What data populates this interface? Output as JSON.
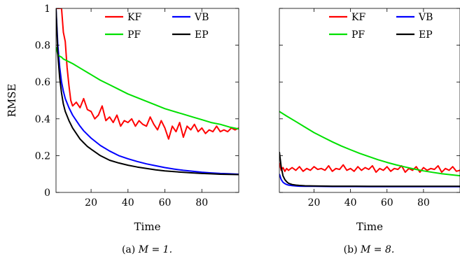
{
  "figure": {
    "shared_xlabel": "Time",
    "shared_ylabel": "RMSE"
  },
  "chart_data": [
    {
      "type": "line",
      "caption_label": "(a)",
      "caption_math": "M = 1.",
      "xlabel": "Time",
      "ylabel": "RMSE",
      "xlim": [
        1,
        100
      ],
      "ylim": [
        0,
        1
      ],
      "xticks": [
        20,
        40,
        60,
        80
      ],
      "yticks": [
        0,
        0.2,
        0.4,
        0.6,
        0.8,
        1
      ],
      "legend_placement": "top-right",
      "series": [
        {
          "name": "KF",
          "color": "#ff0000",
          "x": [
            1,
            2,
            3,
            4,
            5,
            6,
            7,
            8,
            9,
            10,
            12,
            14,
            16,
            18,
            20,
            22,
            24,
            26,
            28,
            30,
            32,
            34,
            36,
            38,
            40,
            42,
            44,
            46,
            48,
            50,
            52,
            54,
            56,
            58,
            60,
            62,
            64,
            66,
            68,
            70,
            72,
            74,
            76,
            78,
            80,
            82,
            84,
            86,
            88,
            90,
            92,
            94,
            96,
            98,
            100
          ],
          "values": [
            1.0,
            1.0,
            1.0,
            1.0,
            0.87,
            0.82,
            0.68,
            0.58,
            0.5,
            0.47,
            0.49,
            0.46,
            0.51,
            0.45,
            0.44,
            0.4,
            0.42,
            0.47,
            0.39,
            0.41,
            0.38,
            0.42,
            0.36,
            0.39,
            0.38,
            0.4,
            0.36,
            0.39,
            0.37,
            0.36,
            0.41,
            0.37,
            0.34,
            0.39,
            0.35,
            0.29,
            0.36,
            0.33,
            0.38,
            0.3,
            0.36,
            0.34,
            0.37,
            0.33,
            0.35,
            0.32,
            0.34,
            0.33,
            0.36,
            0.33,
            0.34,
            0.33,
            0.35,
            0.34,
            0.35
          ]
        },
        {
          "name": "VB",
          "color": "#0000ff",
          "x": [
            1,
            2,
            3,
            4,
            5,
            6,
            8,
            10,
            12,
            14,
            16,
            18,
            20,
            25,
            30,
            35,
            40,
            45,
            50,
            55,
            60,
            65,
            70,
            75,
            80,
            85,
            90,
            95,
            100
          ],
          "values": [
            1.0,
            0.8,
            0.68,
            0.6,
            0.55,
            0.51,
            0.46,
            0.42,
            0.39,
            0.36,
            0.335,
            0.315,
            0.295,
            0.255,
            0.225,
            0.2,
            0.183,
            0.168,
            0.155,
            0.145,
            0.135,
            0.127,
            0.12,
            0.115,
            0.11,
            0.106,
            0.103,
            0.101,
            0.099
          ]
        },
        {
          "name": "PF",
          "color": "#00e000",
          "x": [
            1,
            2,
            3,
            4,
            5,
            6,
            8,
            10,
            15,
            20,
            25,
            30,
            35,
            40,
            45,
            50,
            55,
            60,
            65,
            70,
            75,
            80,
            85,
            90,
            95,
            100
          ],
          "values": [
            0.79,
            0.75,
            0.74,
            0.735,
            0.725,
            0.72,
            0.71,
            0.7,
            0.67,
            0.64,
            0.61,
            0.585,
            0.56,
            0.535,
            0.515,
            0.495,
            0.475,
            0.455,
            0.44,
            0.425,
            0.41,
            0.395,
            0.38,
            0.37,
            0.355,
            0.345
          ]
        },
        {
          "name": "EP",
          "color": "#000000",
          "x": [
            1,
            2,
            3,
            4,
            5,
            6,
            8,
            10,
            12,
            14,
            16,
            18,
            20,
            25,
            30,
            35,
            40,
            45,
            50,
            55,
            60,
            65,
            70,
            75,
            80,
            85,
            90,
            95,
            100
          ],
          "values": [
            1.0,
            0.75,
            0.62,
            0.54,
            0.48,
            0.44,
            0.39,
            0.35,
            0.32,
            0.29,
            0.27,
            0.25,
            0.235,
            0.2,
            0.175,
            0.16,
            0.148,
            0.138,
            0.13,
            0.123,
            0.117,
            0.113,
            0.109,
            0.106,
            0.103,
            0.101,
            0.099,
            0.098,
            0.097
          ]
        }
      ]
    },
    {
      "type": "line",
      "caption_label": "(b)",
      "caption_math": "M = 8.",
      "xlabel": "Time",
      "ylabel": "",
      "xlim": [
        1,
        100
      ],
      "ylim": [
        0,
        1
      ],
      "xticks": [
        20,
        40,
        60,
        80
      ],
      "yticks": [
        0,
        0.2,
        0.4,
        0.6,
        0.8,
        1
      ],
      "legend_placement": "top-right",
      "series": [
        {
          "name": "KF",
          "color": "#ff0000",
          "x": [
            1,
            2,
            3,
            4,
            5,
            6,
            8,
            10,
            12,
            14,
            16,
            18,
            20,
            22,
            24,
            26,
            28,
            30,
            32,
            34,
            36,
            38,
            40,
            42,
            44,
            46,
            48,
            50,
            52,
            54,
            56,
            58,
            60,
            62,
            64,
            66,
            68,
            70,
            72,
            74,
            76,
            78,
            80,
            82,
            84,
            86,
            88,
            90,
            92,
            94,
            96,
            98,
            100
          ],
          "values": [
            0.16,
            0.12,
            0.135,
            0.115,
            0.13,
            0.12,
            0.135,
            0.12,
            0.14,
            0.115,
            0.13,
            0.12,
            0.14,
            0.125,
            0.13,
            0.12,
            0.145,
            0.115,
            0.13,
            0.125,
            0.15,
            0.12,
            0.13,
            0.115,
            0.14,
            0.12,
            0.135,
            0.125,
            0.145,
            0.11,
            0.13,
            0.12,
            0.14,
            0.115,
            0.13,
            0.125,
            0.145,
            0.11,
            0.13,
            0.12,
            0.14,
            0.11,
            0.135,
            0.12,
            0.13,
            0.125,
            0.145,
            0.11,
            0.13,
            0.12,
            0.14,
            0.115,
            0.12
          ]
        },
        {
          "name": "VB",
          "color": "#0000ff",
          "x": [
            1,
            2,
            3,
            4,
            5,
            6,
            8,
            10,
            12,
            15,
            20,
            30,
            40,
            50,
            60,
            70,
            80,
            90,
            100
          ],
          "values": [
            0.1,
            0.07,
            0.055,
            0.048,
            0.043,
            0.04,
            0.037,
            0.035,
            0.034,
            0.033,
            0.033,
            0.032,
            0.032,
            0.031,
            0.031,
            0.031,
            0.031,
            0.031,
            0.031
          ]
        },
        {
          "name": "PF",
          "color": "#00e000",
          "x": [
            1,
            5,
            10,
            15,
            20,
            25,
            30,
            35,
            40,
            45,
            50,
            55,
            60,
            65,
            70,
            75,
            80,
            85,
            90,
            95,
            100
          ],
          "values": [
            0.44,
            0.415,
            0.385,
            0.355,
            0.325,
            0.3,
            0.275,
            0.252,
            0.232,
            0.212,
            0.195,
            0.178,
            0.163,
            0.15,
            0.138,
            0.127,
            0.117,
            0.109,
            0.102,
            0.096,
            0.091
          ]
        },
        {
          "name": "EP",
          "color": "#000000",
          "x": [
            1,
            2,
            3,
            4,
            5,
            6,
            8,
            10,
            12,
            15,
            20,
            30,
            40,
            50,
            60,
            70,
            80,
            90,
            100
          ],
          "values": [
            0.22,
            0.14,
            0.09,
            0.07,
            0.058,
            0.05,
            0.043,
            0.04,
            0.038,
            0.036,
            0.035,
            0.034,
            0.034,
            0.033,
            0.033,
            0.033,
            0.033,
            0.033,
            0.033
          ]
        }
      ]
    }
  ]
}
